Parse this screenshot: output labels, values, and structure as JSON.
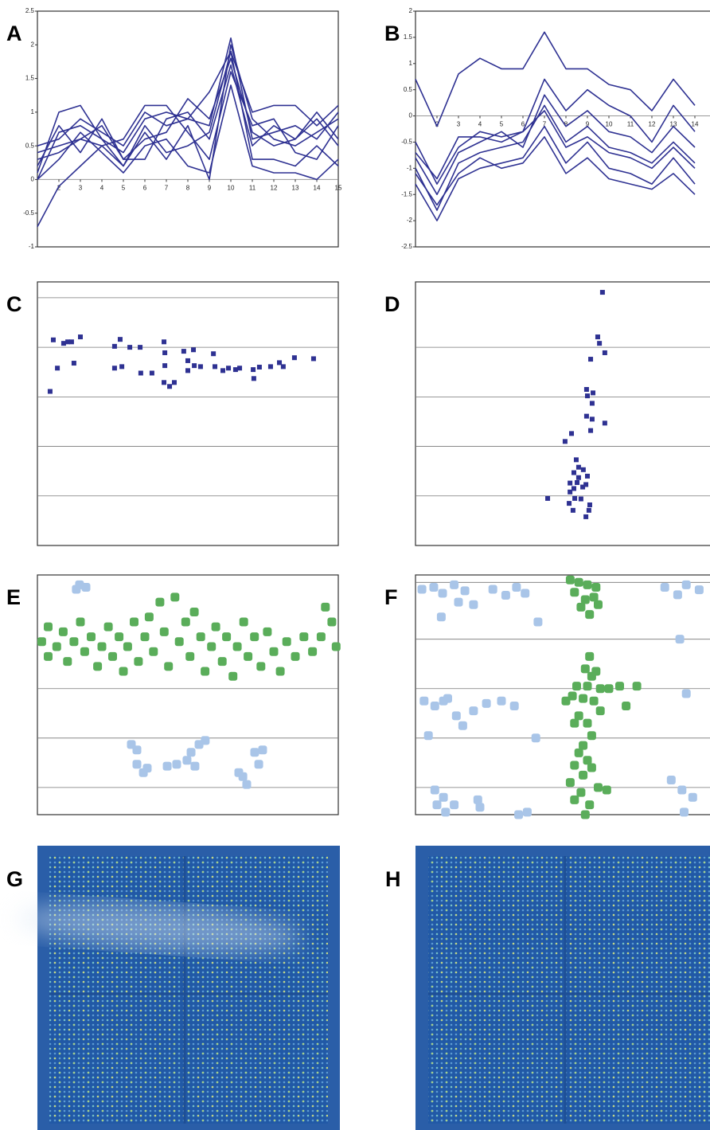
{
  "chart_data": [
    {
      "type": "line",
      "label": "A",
      "color": "#2e3192",
      "xlim": [
        1,
        15
      ],
      "ylim": [
        -1,
        2.5
      ],
      "xticks": [
        2,
        3,
        4,
        5,
        6,
        7,
        8,
        9,
        10,
        11,
        12,
        13,
        14,
        15
      ],
      "yticks": [
        -1,
        -0.5,
        0,
        0.5,
        1,
        1.5,
        2,
        2.5
      ],
      "x": [
        1,
        2,
        3,
        4,
        5,
        6,
        7,
        8,
        9,
        10,
        11,
        12,
        13,
        14,
        15
      ],
      "series": [
        {
          "values": [
            0,
            0.7,
            0.8,
            0.6,
            0.4,
            0.9,
            1,
            0.9,
            0.8,
            2.1,
            0.6,
            0.7,
            0.8,
            0.6,
            1
          ]
        },
        {
          "values": [
            0.4,
            0.5,
            0.6,
            0.8,
            0.3,
            0.6,
            0.7,
            1.2,
            0.9,
            1.8,
            0.7,
            0.5,
            0.6,
            0.9,
            0.5
          ]
        },
        {
          "values": [
            -0.7,
            -0.1,
            0.2,
            0.5,
            0.6,
            1.1,
            1.1,
            0.7,
            0.3,
            1.6,
            0.8,
            0.9,
            0.4,
            0.3,
            0.8
          ]
        },
        {
          "values": [
            0.1,
            1,
            1.1,
            0.6,
            0.2,
            0.8,
            0.4,
            0.5,
            0.7,
            1.9,
            0.3,
            0.3,
            0.2,
            0.5,
            0.2
          ]
        },
        {
          "values": [
            0,
            0.3,
            0.7,
            0.4,
            0.1,
            0.5,
            0.6,
            0.2,
            0.1,
            1.4,
            0.2,
            0.1,
            0.1,
            0,
            0.3
          ]
        },
        {
          "values": [
            0.5,
            0.6,
            0.9,
            0.7,
            0.5,
            1,
            0.8,
            0.9,
            1.3,
            1.9,
            1,
            1.1,
            1.1,
            0.8,
            1.1
          ]
        },
        {
          "values": [
            0.2,
            0.8,
            0.4,
            0.9,
            0.3,
            0.3,
            0.9,
            1,
            0.6,
            1.7,
            0.5,
            0.8,
            0.6,
            1,
            0.6
          ]
        },
        {
          "values": [
            0.3,
            0.4,
            0.6,
            0.5,
            0.2,
            0.7,
            0.3,
            0.8,
            0,
            2,
            0.9,
            0.6,
            0.5,
            0.7,
            0.9
          ]
        }
      ]
    },
    {
      "type": "line",
      "label": "B",
      "color": "#2e3192",
      "xlim": [
        1,
        15
      ],
      "ylim": [
        -2.5,
        2
      ],
      "xticks": [
        2,
        3,
        4,
        5,
        6,
        7,
        8,
        9,
        10,
        11,
        12,
        13,
        14
      ],
      "yticks": [
        -2.5,
        -2,
        -1.5,
        -1,
        -0.5,
        0,
        0.5,
        1,
        1.5,
        2
      ],
      "x": [
        1,
        2,
        3,
        4,
        5,
        6,
        7,
        8,
        9,
        10,
        11,
        12,
        13,
        14
      ],
      "series": [
        {
          "values": [
            0.7,
            -0.2,
            0.8,
            1.1,
            0.9,
            0.9,
            1.6,
            0.9,
            0.9,
            0.6,
            0.5,
            0.1,
            0.7,
            0.2
          ]
        },
        {
          "values": [
            -0.5,
            -1.3,
            -0.6,
            -0.3,
            -0.4,
            -0.3,
            0.7,
            0.1,
            0.5,
            0.2,
            0,
            -0.5,
            0.2,
            -0.3
          ]
        },
        {
          "values": [
            -1,
            -1.8,
            -0.9,
            -0.7,
            -0.6,
            -0.5,
            0.2,
            -0.5,
            -0.2,
            -0.6,
            -0.7,
            -0.9,
            -0.5,
            -0.9
          ]
        },
        {
          "values": [
            -1.3,
            -2,
            -1.2,
            -1,
            -0.9,
            -0.8,
            -0.2,
            -0.9,
            -0.5,
            -1,
            -1.1,
            -1.3,
            -0.8,
            -1.3
          ]
        },
        {
          "values": [
            -0.8,
            -1.5,
            -0.7,
            -0.5,
            -0.3,
            -0.6,
            0.4,
            -0.2,
            0.1,
            -0.3,
            -0.4,
            -0.7,
            -0.2,
            -0.6
          ]
        },
        {
          "values": [
            -1.1,
            -1.7,
            -1.1,
            -0.8,
            -1,
            -0.9,
            -0.4,
            -1.1,
            -0.8,
            -1.2,
            -1.3,
            -1.4,
            -1.1,
            -1.5
          ]
        },
        {
          "values": [
            -0.7,
            -1.2,
            -0.4,
            -0.4,
            -0.5,
            -0.3,
            0.1,
            -0.6,
            -0.4,
            -0.7,
            -0.8,
            -1,
            -0.6,
            -1
          ]
        }
      ]
    },
    {
      "type": "scatter",
      "label": "C",
      "xlim": [
        0,
        14
      ],
      "ylim": [
        0,
        5.32
      ],
      "gridlines": [
        1,
        2,
        3,
        4,
        5
      ],
      "series": [
        {
          "color": "#2e3192",
          "x": [
            0.59,
            0.74,
            0.93,
            1.22,
            1.41,
            1.59,
            1.7,
            2.0,
            3.59,
            3.59,
            3.85,
            3.93,
            4.3,
            4.78,
            4.81,
            5.33,
            5.89,
            5.93,
            5.93,
            5.89,
            6.15,
            6.37,
            6.81,
            7.0,
            7.0,
            7.26,
            7.3,
            7.59,
            8.19,
            8.26,
            8.63,
            8.89,
            9.22,
            9.41,
            10.04,
            10.07,
            10.33,
            10.85,
            11.26,
            11.44,
            11.96,
            12.85
          ],
          "values": [
            3.11,
            4.15,
            3.58,
            4.08,
            4.11,
            4.11,
            3.68,
            4.21,
            4.02,
            3.58,
            4.16,
            3.61,
            4.0,
            4.0,
            3.48,
            3.48,
            4.11,
            3.89,
            3.63,
            3.29,
            3.21,
            3.29,
            3.92,
            3.73,
            3.53,
            3.95,
            3.63,
            3.61,
            3.87,
            3.61,
            3.53,
            3.58,
            3.55,
            3.58,
            3.55,
            3.37,
            3.6,
            3.61,
            3.69,
            3.61,
            3.79,
            3.77
          ]
        }
      ]
    },
    {
      "type": "scatter",
      "label": "D",
      "xlim": [
        0,
        14
      ],
      "ylim": [
        0,
        5.32
      ],
      "gridlines": [
        1,
        2,
        3,
        4
      ],
      "series": [
        {
          "color": "#2e3192",
          "x": [
            8.7,
            8.48,
            8.56,
            8.81,
            8.15,
            7.96,
            8.26,
            8.0,
            8.22,
            7.96,
            8.22,
            8.81,
            8.15,
            7.26,
            6.96,
            7.48,
            7.59,
            7.37,
            7.81,
            8.0,
            7.59,
            7.19,
            7.52,
            7.93,
            7.78,
            7.37,
            7.19,
            6.15,
            7.41,
            7.7,
            7.15,
            8.11,
            7.33,
            8.07,
            7.93
          ],
          "values": [
            5.11,
            4.21,
            4.08,
            3.89,
            3.76,
            3.15,
            3.08,
            3.02,
            2.87,
            2.61,
            2.55,
            2.47,
            2.32,
            2.26,
            2.1,
            1.73,
            1.58,
            1.47,
            1.53,
            1.4,
            1.37,
            1.26,
            1.27,
            1.23,
            1.18,
            1.15,
            1.08,
            0.95,
            0.95,
            0.94,
            0.85,
            0.82,
            0.71,
            0.71,
            0.58
          ]
        }
      ]
    },
    {
      "type": "scatter",
      "label": "E",
      "xlim": [
        0,
        14
      ],
      "ylim": [
        0,
        4.85
      ],
      "gridlines": [
        0.55,
        1.55,
        2.55
      ],
      "series": [
        {
          "color": "#a9c5e8",
          "x": [
            1.96,
            2.26,
            1.81,
            4.37,
            4.63,
            4.63,
            4.93,
            5.11,
            6.04,
            6.48,
            6.96,
            7.15,
            7.52,
            7.81,
            7.33,
            9.37,
            9.56,
            9.74,
            10.11,
            10.48,
            10.3
          ],
          "values": [
            4.65,
            4.6,
            4.56,
            1.42,
            1.31,
            1.02,
            0.85,
            0.94,
            0.98,
            1.02,
            1.1,
            1.26,
            1.42,
            1.5,
            0.98,
            0.85,
            0.77,
            0.61,
            1.26,
            1.31,
            1.02
          ]
        },
        {
          "color": "#5aad5a",
          "x": [
            0.2,
            0.5,
            0.5,
            0.9,
            1.2,
            1.4,
            1.7,
            2.0,
            2.2,
            2.5,
            2.8,
            3.0,
            3.3,
            3.5,
            3.8,
            4.0,
            4.2,
            4.5,
            4.7,
            5.0,
            5.2,
            5.4,
            5.7,
            5.9,
            6.1,
            6.4,
            6.6,
            6.9,
            7.1,
            7.3,
            7.6,
            7.8,
            8.1,
            8.3,
            8.6,
            8.8,
            9.1,
            9.3,
            9.6,
            9.8,
            10.1,
            10.4,
            10.7,
            11.0,
            11.3,
            11.6,
            12.0,
            12.4,
            12.8,
            13.2,
            13.4,
            13.7,
            13.9
          ],
          "values": [
            3.5,
            3.2,
            3.8,
            3.4,
            3.7,
            3.1,
            3.5,
            3.9,
            3.3,
            3.6,
            3.0,
            3.4,
            3.8,
            3.2,
            3.6,
            2.9,
            3.4,
            3.9,
            3.1,
            3.6,
            4.0,
            3.3,
            4.3,
            3.7,
            3.0,
            4.4,
            3.5,
            3.9,
            3.2,
            4.1,
            3.6,
            2.9,
            3.4,
            3.8,
            3.1,
            3.6,
            2.8,
            3.4,
            3.9,
            3.2,
            3.6,
            3.0,
            3.7,
            3.3,
            2.9,
            3.5,
            3.2,
            3.6,
            3.3,
            3.6,
            4.2,
            3.9,
            3.4
          ]
        }
      ]
    },
    {
      "type": "scatter",
      "label": "F",
      "xlim": [
        0,
        14
      ],
      "ylim": [
        0,
        4.85
      ],
      "gridlines": [
        0.55,
        1.55,
        2.55,
        3.55,
        4.7
      ],
      "series": [
        {
          "color": "#a9c5e8",
          "x": [
            0.3,
            0.85,
            1.26,
            1.8,
            2.3,
            2.7,
            3.6,
            4.2,
            4.7,
            5.1,
            1.2,
            2.0,
            0.4,
            0.9,
            1.5,
            1.9,
            2.2,
            2.7,
            3.3,
            4.0,
            4.6,
            1.3,
            0.6,
            5.6,
            5.7,
            0.9,
            1.3,
            1.4,
            1.8,
            2.9,
            3.0,
            4.8,
            5.2,
            1.0,
            11.6,
            12.2,
            12.6,
            13.2,
            12.3,
            12.6,
            11.9,
            12.4,
            12.9,
            12.5
          ],
          "values": [
            4.56,
            4.6,
            4.48,
            4.65,
            4.53,
            4.25,
            4.56,
            4.44,
            4.6,
            4.48,
            4.0,
            4.3,
            2.3,
            2.2,
            2.35,
            2.0,
            1.8,
            2.1,
            2.25,
            2.3,
            2.2,
            2.3,
            1.6,
            1.55,
            3.9,
            0.5,
            0.35,
            0.05,
            0.2,
            0.3,
            0.15,
            0.0,
            0.05,
            0.2,
            4.6,
            4.45,
            4.65,
            4.55,
            3.55,
            2.45,
            0.7,
            0.5,
            0.35,
            0.05
          ]
        },
        {
          "color": "#5aad5a",
          "x": [
            7.2,
            7.6,
            8.0,
            8.4,
            7.4,
            7.9,
            8.3,
            7.7,
            8.1,
            8.5,
            8.1,
            7.9,
            8.2,
            7.5,
            8.0,
            8.6,
            9.0,
            9.5,
            10.3,
            7.3,
            7.8,
            8.3,
            7.0,
            8.6,
            7.6,
            8.0,
            7.4,
            8.2,
            7.8,
            8.4,
            9.8,
            7.6,
            8.0,
            7.4,
            8.2,
            7.8,
            7.2,
            8.5,
            7.7,
            8.9,
            7.4,
            8.1,
            7.9
          ],
          "values": [
            4.75,
            4.7,
            4.65,
            4.6,
            4.5,
            4.35,
            4.4,
            4.2,
            4.05,
            4.25,
            3.2,
            2.95,
            2.8,
            2.6,
            2.6,
            2.55,
            2.55,
            2.6,
            2.6,
            2.4,
            2.35,
            2.3,
            2.3,
            2.1,
            2.0,
            1.85,
            1.85,
            1.6,
            1.4,
            2.9,
            2.2,
            1.25,
            1.1,
            1.0,
            0.95,
            0.8,
            0.65,
            0.55,
            0.45,
            0.5,
            0.3,
            0.2,
            0.0
          ]
        }
      ]
    }
  ],
  "image_panels": [
    {
      "label": "G"
    },
    {
      "label": "H"
    }
  ]
}
